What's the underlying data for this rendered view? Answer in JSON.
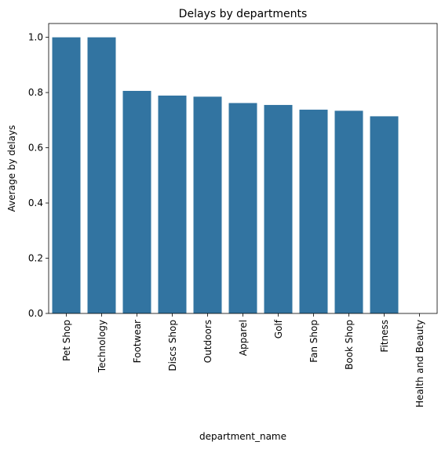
{
  "chart_data": {
    "type": "bar",
    "title": "Delays by departments",
    "xlabel": "department_name",
    "ylabel": "Average by delays",
    "categories": [
      "Pet Shop",
      "Technology",
      "Footwear",
      "Discs Shop",
      "Outdoors",
      "Apparel",
      "Golf",
      "Fan Shop",
      "Book Shop",
      "Fitness",
      "Health and Beauty"
    ],
    "values": [
      1.0,
      1.0,
      0.806,
      0.789,
      0.785,
      0.762,
      0.755,
      0.738,
      0.734,
      0.714,
      0.0
    ],
    "ylim": [
      0,
      1.05
    ],
    "yticks": [
      0.0,
      0.2,
      0.4,
      0.6,
      0.8,
      1.0
    ],
    "ytick_labels": [
      "0.0",
      "0.2",
      "0.4",
      "0.6",
      "0.8",
      "1.0"
    ],
    "grid": false,
    "legend": "none",
    "bar_color": "#3274a1"
  }
}
